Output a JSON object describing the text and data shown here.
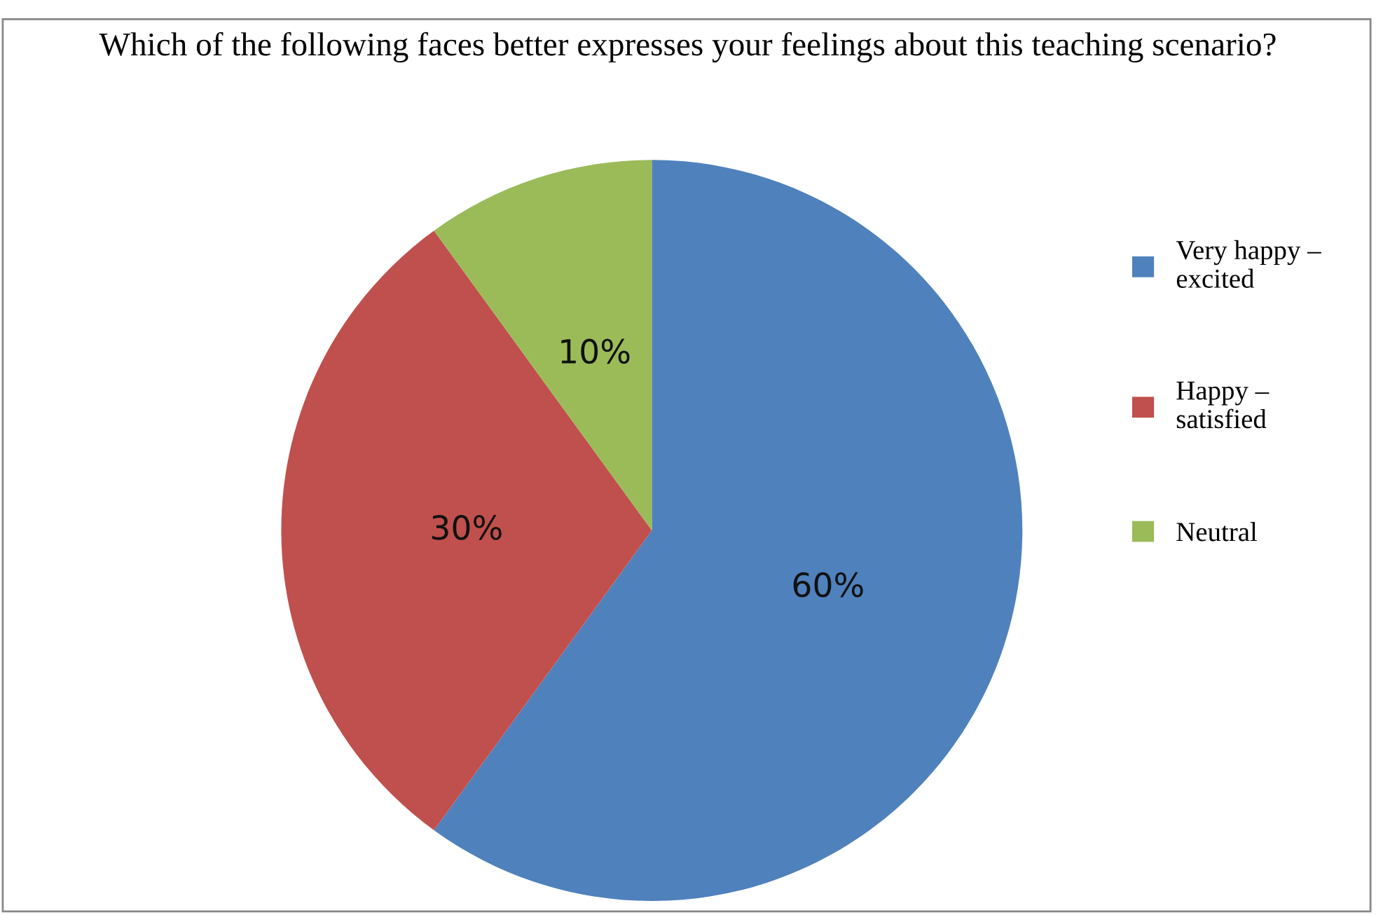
{
  "chart_data": {
    "type": "pie",
    "title": "Which of the following faces better expresses your feelings about this teaching scenario?",
    "categories": [
      "Very happy –\nexcited",
      "Happy –\nsatisfied",
      "Neutral"
    ],
    "values": [
      60,
      30,
      10
    ],
    "colors": [
      "#4f81bd",
      "#c0504d",
      "#9bbb59"
    ],
    "value_labels": [
      "60%",
      "30%",
      "10%"
    ],
    "legend": "right"
  }
}
